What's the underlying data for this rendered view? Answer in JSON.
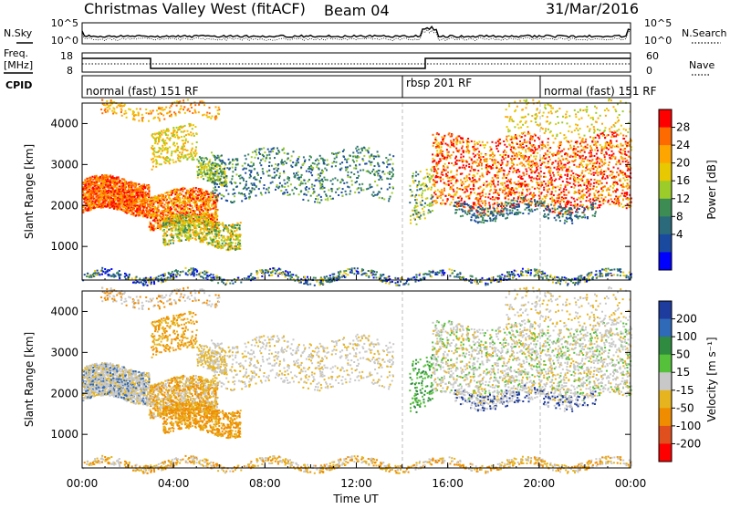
{
  "header": {
    "title": "Christmas Valley West (fitACF)",
    "beam": "Beam 04",
    "date": "31/Mar/2016"
  },
  "strip_noise": {
    "left_label": "N.Sky",
    "right_label": "N.Search",
    "left_ticks": [
      "10^5",
      "10^0"
    ],
    "right_ticks": [
      "10^5",
      "10^0"
    ]
  },
  "strip_freq": {
    "left_label_1": "Freq.",
    "left_label_2": "[MHz]",
    "right_label": "Nave",
    "left_ticks": [
      "18",
      "8"
    ],
    "right_ticks": [
      "60",
      "0"
    ]
  },
  "cpid": {
    "label": "CPID",
    "segments": [
      {
        "label": "normal (fast) 151 RF",
        "start_h": 0,
        "end_h": 14
      },
      {
        "label": "rbsp 201 RF",
        "start_h": 14,
        "end_h": 20
      },
      {
        "label": "normal (fast) 151 RF",
        "start_h": 20,
        "end_h": 24
      }
    ]
  },
  "chart_data": [
    {
      "type": "heatmap",
      "name": "power",
      "ylabel": "Slant Range [km]",
      "yticks": [
        1000,
        2000,
        3000,
        4000
      ],
      "ylim": [
        180,
        4500
      ],
      "colorbar": {
        "label": "Power [dB]",
        "ticks": [
          "28",
          "24",
          "20",
          "16",
          "12",
          "8",
          "4"
        ],
        "colors": [
          "#ff0000",
          "#ff6a00",
          "#ffa500",
          "#e8c800",
          "#9ccc2a",
          "#3c8c54",
          "#2a6a7a",
          "#1a4aa0",
          "#0000ff"
        ]
      }
    },
    {
      "type": "heatmap",
      "name": "velocity",
      "ylabel": "Slant Range [km]",
      "yticks": [
        1000,
        2000,
        3000,
        4000
      ],
      "ylim": [
        180,
        4500
      ],
      "xlabel": "Time UT",
      "xticks": [
        "00:00",
        "04:00",
        "08:00",
        "12:00",
        "16:00",
        "20:00",
        "00:00"
      ],
      "xlim": [
        0,
        24
      ],
      "colorbar": {
        "label": "Velocity [m s⁻¹]",
        "ticks": [
          "200",
          "100",
          "50",
          "15",
          "-15",
          "-50",
          "-100",
          "-200"
        ],
        "colors": [
          "#1e3c9e",
          "#2f6ab8",
          "#2e8b3f",
          "#55c03a",
          "#c8c8c8",
          "#e6b41e",
          "#f08c00",
          "#e0501e",
          "#ff0000"
        ]
      }
    }
  ]
}
